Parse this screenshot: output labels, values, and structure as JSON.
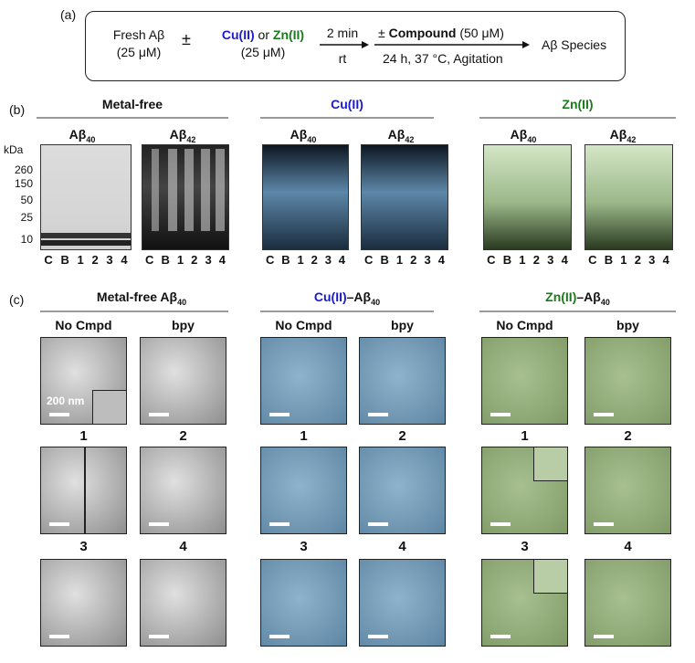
{
  "panel_a": {
    "label": "(a)",
    "fresh_line1": "Fresh Aβ",
    "fresh_line2": "(25 μM)",
    "pm1": "±",
    "metal_cu": "Cu(II)",
    "metal_or": "or",
    "metal_zn": "Zn(II)",
    "metal_conc": "(25 μM)",
    "step1_top": "2 min",
    "step1_bottom": "rt",
    "pm2": "±",
    "compound_label": "Compound",
    "compound_conc": "(50 μM)",
    "step2_bottom": "24 h, 37 °C, Agitation",
    "result": "Aβ Species"
  },
  "panel_b": {
    "label": "(b)",
    "headers": {
      "metal_free": "Metal-free",
      "cu": "Cu(II)",
      "zn": "Zn(II)"
    },
    "ab40": "Aβ",
    "ab40_sub": "40",
    "ab42": "Aβ",
    "ab42_sub": "42",
    "kda": "kDa",
    "y_ticks": [
      "260",
      "150",
      "50",
      "25",
      "10"
    ],
    "lanes": [
      "C",
      "B",
      "1",
      "2",
      "3",
      "4"
    ]
  },
  "panel_c": {
    "label": "(c)",
    "header_mf": "Metal-free Aβ",
    "header_mf_sub": "40",
    "header_cu_metal": "Cu(II)",
    "header_cu_rest": "–Aβ",
    "header_cu_sub": "40",
    "header_zn_metal": "Zn(II)",
    "header_zn_rest": "–Aβ",
    "header_zn_sub": "40",
    "col_no_cmpd": "No Cmpd",
    "col_bpy": "bpy",
    "scale_label": "200 nm",
    "numbers": [
      "1",
      "2",
      "3",
      "4"
    ]
  },
  "colors": {
    "cu": "#1b1bd0",
    "zn": "#1b7a1b"
  }
}
